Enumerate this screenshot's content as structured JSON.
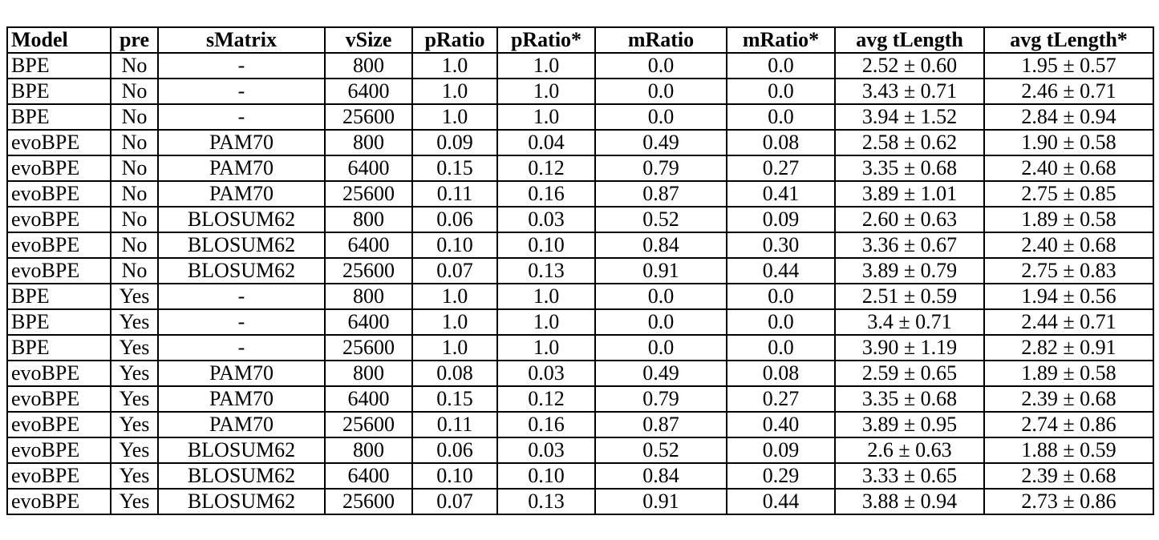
{
  "columns": [
    "Model",
    "pre",
    "sMatrix",
    "vSize",
    "pRatio",
    "pRatio*",
    "mRatio",
    "mRatio*",
    "avg tLength",
    "avg tLength*"
  ],
  "rows": [
    [
      "BPE",
      "No",
      "-",
      "800",
      "1.0",
      "1.0",
      "0.0",
      "0.0",
      "2.52 ± 0.60",
      "1.95 ± 0.57"
    ],
    [
      "BPE",
      "No",
      "-",
      "6400",
      "1.0",
      "1.0",
      "0.0",
      "0.0",
      "3.43 ± 0.71",
      "2.46 ± 0.71"
    ],
    [
      "BPE",
      "No",
      "-",
      "25600",
      "1.0",
      "1.0",
      "0.0",
      "0.0",
      "3.94 ± 1.52",
      "2.84 ± 0.94"
    ],
    [
      "evoBPE",
      "No",
      "PAM70",
      "800",
      "0.09",
      "0.04",
      "0.49",
      "0.08",
      "2.58 ± 0.62",
      "1.90 ± 0.58"
    ],
    [
      "evoBPE",
      "No",
      "PAM70",
      "6400",
      "0.15",
      "0.12",
      "0.79",
      "0.27",
      "3.35 ± 0.68",
      "2.40 ± 0.68"
    ],
    [
      "evoBPE",
      "No",
      "PAM70",
      "25600",
      "0.11",
      "0.16",
      "0.87",
      "0.41",
      "3.89 ± 1.01",
      "2.75 ± 0.85"
    ],
    [
      "evoBPE",
      "No",
      "BLOSUM62",
      "800",
      "0.06",
      "0.03",
      "0.52",
      "0.09",
      "2.60 ± 0.63",
      "1.89 ± 0.58"
    ],
    [
      "evoBPE",
      "No",
      "BLOSUM62",
      "6400",
      "0.10",
      "0.10",
      "0.84",
      "0.30",
      "3.36 ± 0.67",
      "2.40 ± 0.68"
    ],
    [
      "evoBPE",
      "No",
      "BLOSUM62",
      "25600",
      "0.07",
      "0.13",
      "0.91",
      "0.44",
      "3.89 ± 0.79",
      "2.75 ± 0.83"
    ],
    [
      "BPE",
      "Yes",
      "-",
      "800",
      "1.0",
      "1.0",
      "0.0",
      "0.0",
      "2.51 ± 0.59",
      "1.94 ± 0.56"
    ],
    [
      "BPE",
      "Yes",
      "-",
      "6400",
      "1.0",
      "1.0",
      "0.0",
      "0.0",
      "3.4 ± 0.71",
      "2.44 ± 0.71"
    ],
    [
      "BPE",
      "Yes",
      "-",
      "25600",
      "1.0",
      "1.0",
      "0.0",
      "0.0",
      "3.90 ± 1.19",
      "2.82 ± 0.91"
    ],
    [
      "evoBPE",
      "Yes",
      "PAM70",
      "800",
      "0.08",
      "0.03",
      "0.49",
      "0.08",
      "2.59 ± 0.65",
      "1.89 ± 0.58"
    ],
    [
      "evoBPE",
      "Yes",
      "PAM70",
      "6400",
      "0.15",
      "0.12",
      "0.79",
      "0.27",
      "3.35 ± 0.68",
      "2.39 ± 0.68"
    ],
    [
      "evoBPE",
      "Yes",
      "PAM70",
      "25600",
      "0.11",
      "0.16",
      "0.87",
      "0.40",
      "3.89 ± 0.95",
      "2.74 ± 0.86"
    ],
    [
      "evoBPE",
      "Yes",
      "BLOSUM62",
      "800",
      "0.06",
      "0.03",
      "0.52",
      "0.09",
      "2.6 ± 0.63",
      "1.88 ± 0.59"
    ],
    [
      "evoBPE",
      "Yes",
      "BLOSUM62",
      "6400",
      "0.10",
      "0.10",
      "0.84",
      "0.29",
      "3.33 ± 0.65",
      "2.39 ± 0.68"
    ],
    [
      "evoBPE",
      "Yes",
      "BLOSUM62",
      "25600",
      "0.07",
      "0.13",
      "0.91",
      "0.44",
      "3.88 ± 0.94",
      "2.73 ± 0.86"
    ]
  ]
}
